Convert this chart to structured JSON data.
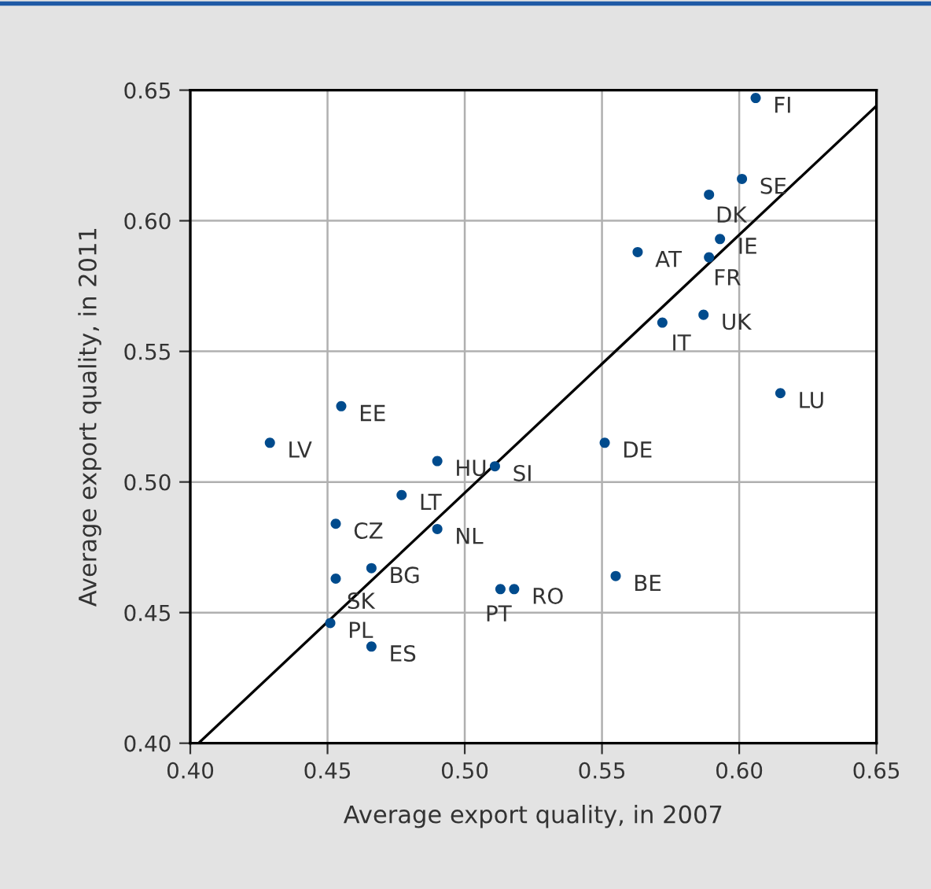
{
  "chart_data": {
    "type": "scatter",
    "xlabel": "Average export quality, in 2007",
    "ylabel": "Average export quality, in 2011",
    "xlim": [
      0.4,
      0.65
    ],
    "ylim": [
      0.4,
      0.65
    ],
    "xticks": [
      {
        "value": 0.4,
        "label": "0.40"
      },
      {
        "value": 0.45,
        "label": "0.45"
      },
      {
        "value": 0.5,
        "label": "0.50"
      },
      {
        "value": 0.55,
        "label": "0.55"
      },
      {
        "value": 0.6,
        "label": "0.60"
      },
      {
        "value": 0.65,
        "label": "0.65"
      }
    ],
    "yticks": [
      {
        "value": 0.4,
        "label": "0.40"
      },
      {
        "value": 0.45,
        "label": "0.45"
      },
      {
        "value": 0.5,
        "label": "0.50"
      },
      {
        "value": 0.55,
        "label": "0.55"
      },
      {
        "value": 0.6,
        "label": "0.60"
      },
      {
        "value": 0.65,
        "label": "0.65"
      }
    ],
    "grid": true,
    "series": [
      {
        "marker": "circle",
        "color": "#004b8d",
        "x": [
          0.606,
          0.601,
          0.589,
          0.593,
          0.563,
          0.589,
          0.587,
          0.572,
          0.615,
          0.455,
          0.429,
          0.551,
          0.49,
          0.511,
          0.477,
          0.453,
          0.49,
          0.466,
          0.453,
          0.555,
          0.513,
          0.518,
          0.451,
          0.466
        ],
        "values": [
          0.647,
          0.616,
          0.61,
          0.593,
          0.588,
          0.586,
          0.564,
          0.561,
          0.534,
          0.529,
          0.515,
          0.515,
          0.508,
          0.506,
          0.495,
          0.484,
          0.482,
          0.467,
          0.463,
          0.464,
          0.459,
          0.459,
          0.446,
          0.437
        ]
      },
      {
        "type": "line",
        "color": "#000000",
        "x": [
          0.403,
          0.65
        ],
        "values": [
          0.4,
          0.644
        ]
      }
    ],
    "annotations": [
      {
        "text": "FI",
        "x": 0.606,
        "y": 0.647
      },
      {
        "text": "SE",
        "x": 0.601,
        "y": 0.616
      },
      {
        "text": "DK",
        "x": 0.589,
        "y": 0.61
      },
      {
        "text": "IE",
        "x": 0.593,
        "y": 0.593
      },
      {
        "text": "AT",
        "x": 0.563,
        "y": 0.588
      },
      {
        "text": "FR",
        "x": 0.589,
        "y": 0.586
      },
      {
        "text": "UK",
        "x": 0.587,
        "y": 0.564
      },
      {
        "text": "IT",
        "x": 0.572,
        "y": 0.561
      },
      {
        "text": "LU",
        "x": 0.615,
        "y": 0.534
      },
      {
        "text": "EE",
        "x": 0.455,
        "y": 0.529
      },
      {
        "text": "LV",
        "x": 0.429,
        "y": 0.515
      },
      {
        "text": "DE",
        "x": 0.551,
        "y": 0.515
      },
      {
        "text": "HU",
        "x": 0.49,
        "y": 0.508
      },
      {
        "text": "SI",
        "x": 0.511,
        "y": 0.506
      },
      {
        "text": "LT",
        "x": 0.477,
        "y": 0.495
      },
      {
        "text": "CZ",
        "x": 0.453,
        "y": 0.484
      },
      {
        "text": "NL",
        "x": 0.49,
        "y": 0.482
      },
      {
        "text": "BG",
        "x": 0.466,
        "y": 0.467
      },
      {
        "text": "SK",
        "x": 0.453,
        "y": 0.463
      },
      {
        "text": "BE",
        "x": 0.555,
        "y": 0.464
      },
      {
        "text": "PT",
        "x": 0.513,
        "y": 0.459
      },
      {
        "text": "RO",
        "x": 0.518,
        "y": 0.459
      },
      {
        "text": "PL",
        "x": 0.451,
        "y": 0.446
      },
      {
        "text": "ES",
        "x": 0.466,
        "y": 0.437
      }
    ]
  }
}
